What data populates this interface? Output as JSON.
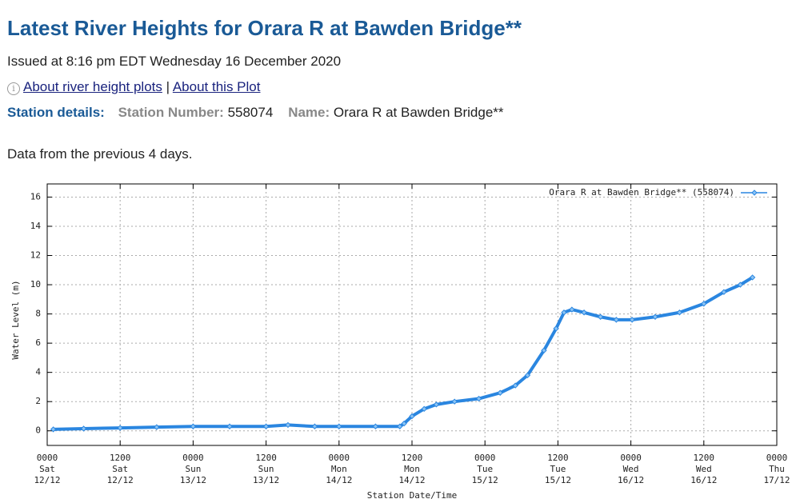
{
  "header": {
    "title": "Latest River Heights for Orara R at Bawden Bridge**",
    "issued": "Issued at 8:16 pm EDT Wednesday 16 December 2020"
  },
  "links": [
    "About river height plots",
    "About this Plot"
  ],
  "separator": "|",
  "station": {
    "label": "Station details:",
    "number_label": "Station Number:",
    "number": "558074",
    "name_label": "Name:",
    "name": "Orara R at Bawden Bridge**"
  },
  "note": "Data from the previous 4 days.",
  "chart_data": {
    "type": "line",
    "x_label": "Station Date/Time",
    "y_label": "Water Level (m)",
    "xlim": [
      0,
      120
    ],
    "ylim": [
      -1,
      16.9
    ],
    "yticks": [
      0,
      2,
      4,
      6,
      8,
      10,
      12,
      14,
      16
    ],
    "xticks": [
      {
        "value": 0,
        "label": [
          "0000",
          "Sat",
          "12/12"
        ]
      },
      {
        "value": 12,
        "label": [
          "1200",
          "Sat",
          "12/12"
        ]
      },
      {
        "value": 24,
        "label": [
          "0000",
          "Sun",
          "13/12"
        ]
      },
      {
        "value": 36,
        "label": [
          "1200",
          "Sun",
          "13/12"
        ]
      },
      {
        "value": 48,
        "label": [
          "0000",
          "Mon",
          "14/12"
        ]
      },
      {
        "value": 60,
        "label": [
          "1200",
          "Mon",
          "14/12"
        ]
      },
      {
        "value": 72,
        "label": [
          "0000",
          "Tue",
          "15/12"
        ]
      },
      {
        "value": 84,
        "label": [
          "1200",
          "Tue",
          "15/12"
        ]
      },
      {
        "value": 96,
        "label": [
          "0000",
          "Wed",
          "16/12"
        ]
      },
      {
        "value": 108,
        "label": [
          "1200",
          "Wed",
          "16/12"
        ]
      },
      {
        "value": 120,
        "label": [
          "0000",
          "Thu",
          "17/12"
        ]
      }
    ],
    "grid": true,
    "legend": "top-right",
    "series": [
      {
        "name": "Orara R at Bawden Bridge** (558074)",
        "color": "#2a86e0",
        "x": [
          1,
          6,
          12,
          18,
          24,
          30,
          36,
          39.6,
          44,
          48,
          54,
          58,
          58.7,
          60,
          62,
          64,
          67,
          71,
          74.5,
          77,
          79,
          81.7,
          83.7,
          85,
          86.3,
          88.3,
          91,
          93.6,
          96.2,
          100,
          104,
          108,
          111.3,
          114,
          116
        ],
        "values": [
          0.1,
          0.15,
          0.2,
          0.25,
          0.3,
          0.3,
          0.3,
          0.4,
          0.3,
          0.3,
          0.3,
          0.3,
          0.5,
          1.0,
          1.5,
          1.8,
          2.0,
          2.2,
          2.6,
          3.1,
          3.8,
          5.5,
          7.0,
          8.1,
          8.3,
          8.1,
          7.8,
          7.6,
          7.6,
          7.8,
          8.1,
          8.7,
          9.5,
          10.0,
          10.5
        ]
      }
    ]
  }
}
